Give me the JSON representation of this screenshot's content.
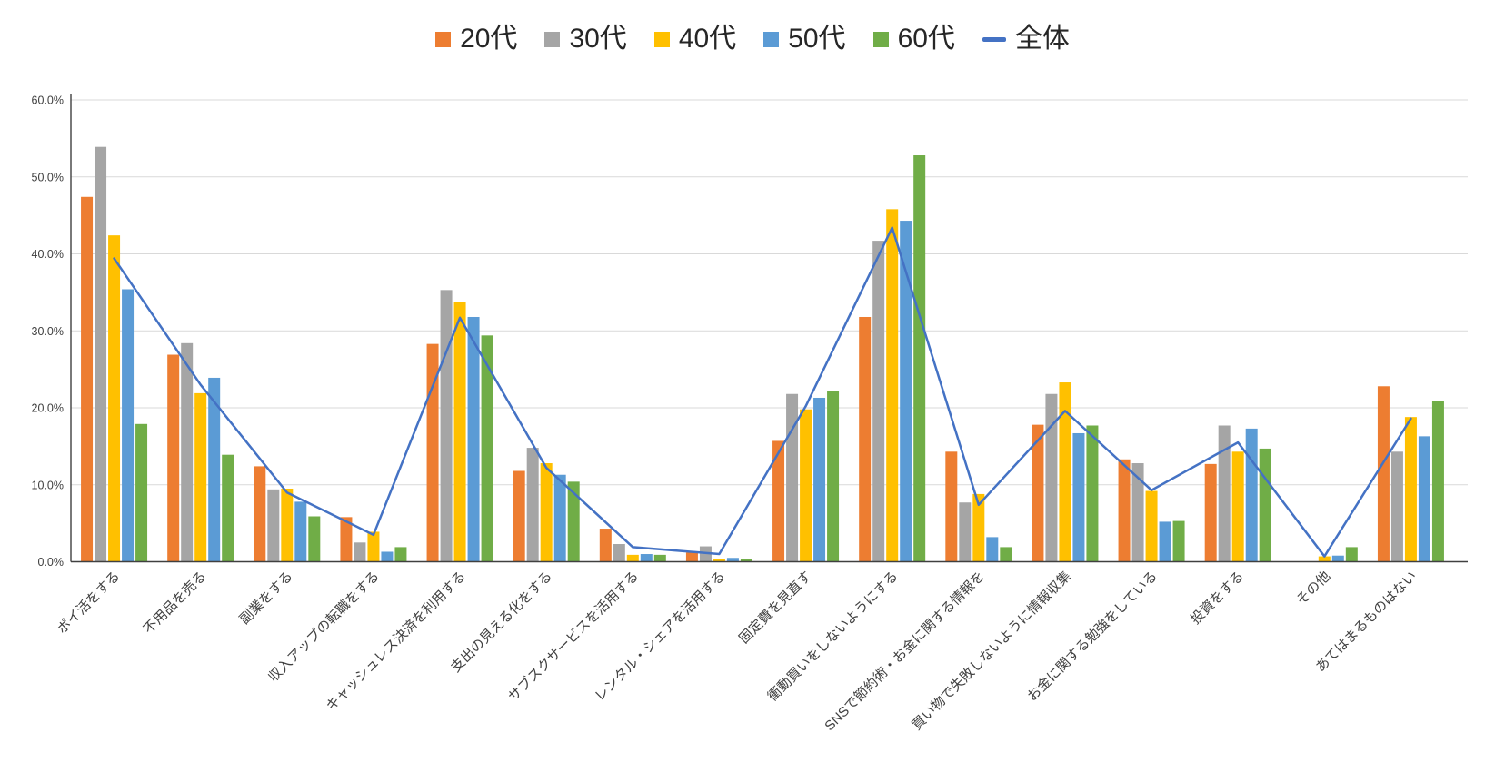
{
  "chart_data": {
    "type": "bar",
    "title": "",
    "categories": [
      "ポイ活をする",
      "不用品を売る",
      "副業をする",
      "収入アップの転職をする",
      "キャッシュレス決済を利用する",
      "支出の見える化をする",
      "サブスクサービスを活用する",
      "レンタル・シェアを活用する",
      "固定費を見直す",
      "衝動買いをしないようにする",
      "SNSで節約術・お金に関する情報を",
      "買い物で失敗しないように情報収集",
      "お金に関する勉強をしている",
      "投資をする",
      "その他",
      "あてはまるものはない"
    ],
    "series": [
      {
        "name": "20代",
        "type": "bar",
        "color": "#ED7D31",
        "values": [
          47.4,
          26.9,
          12.4,
          5.8,
          28.3,
          11.8,
          4.3,
          1.2,
          15.7,
          31.8,
          14.3,
          17.8,
          13.3,
          12.7,
          0.0,
          22.8
        ]
      },
      {
        "name": "30代",
        "type": "bar",
        "color": "#A5A5A5",
        "values": [
          53.9,
          28.4,
          9.4,
          2.5,
          35.3,
          14.8,
          2.3,
          2.0,
          21.8,
          41.7,
          7.7,
          21.8,
          12.8,
          17.7,
          0.0,
          14.3
        ]
      },
      {
        "name": "40代",
        "type": "bar",
        "color": "#FFC000",
        "values": [
          42.4,
          21.9,
          9.5,
          3.9,
          33.8,
          12.8,
          0.9,
          0.4,
          19.8,
          45.8,
          8.8,
          23.3,
          9.2,
          14.3,
          0.7,
          18.8
        ]
      },
      {
        "name": "50代",
        "type": "bar",
        "color": "#5B9BD5",
        "values": [
          35.4,
          23.9,
          7.8,
          1.3,
          31.8,
          11.3,
          1.0,
          0.5,
          21.3,
          44.3,
          3.2,
          16.7,
          5.2,
          17.3,
          0.8,
          16.3
        ]
      },
      {
        "name": "60代",
        "type": "bar",
        "color": "#70AD47",
        "values": [
          17.9,
          13.9,
          5.9,
          1.9,
          29.4,
          10.4,
          0.9,
          0.4,
          22.2,
          52.8,
          1.9,
          17.7,
          5.3,
          14.7,
          1.9,
          20.9
        ]
      },
      {
        "name": "全体",
        "type": "line",
        "color": "#4472C4",
        "values": [
          39.4,
          23.0,
          9.0,
          3.5,
          31.7,
          12.2,
          1.9,
          1.0,
          20.2,
          43.4,
          7.4,
          19.6,
          9.3,
          15.5,
          0.7,
          18.6
        ]
      }
    ],
    "ylim": [
      0,
      60
    ],
    "ytick_step": 10,
    "ytick_labels": [
      "0.0%",
      "10.0%",
      "20.0%",
      "30.0%",
      "40.0%",
      "50.0%",
      "60.0%"
    ],
    "grid": true,
    "legend_position": "top",
    "xlabel": "",
    "ylabel": ""
  },
  "colors": {
    "background": "#FFFFFF",
    "gridline": "#D9D9D9",
    "axis": "#404040",
    "tick_text": "#404040",
    "category_text": "#404040",
    "legend_text": "#262626"
  }
}
